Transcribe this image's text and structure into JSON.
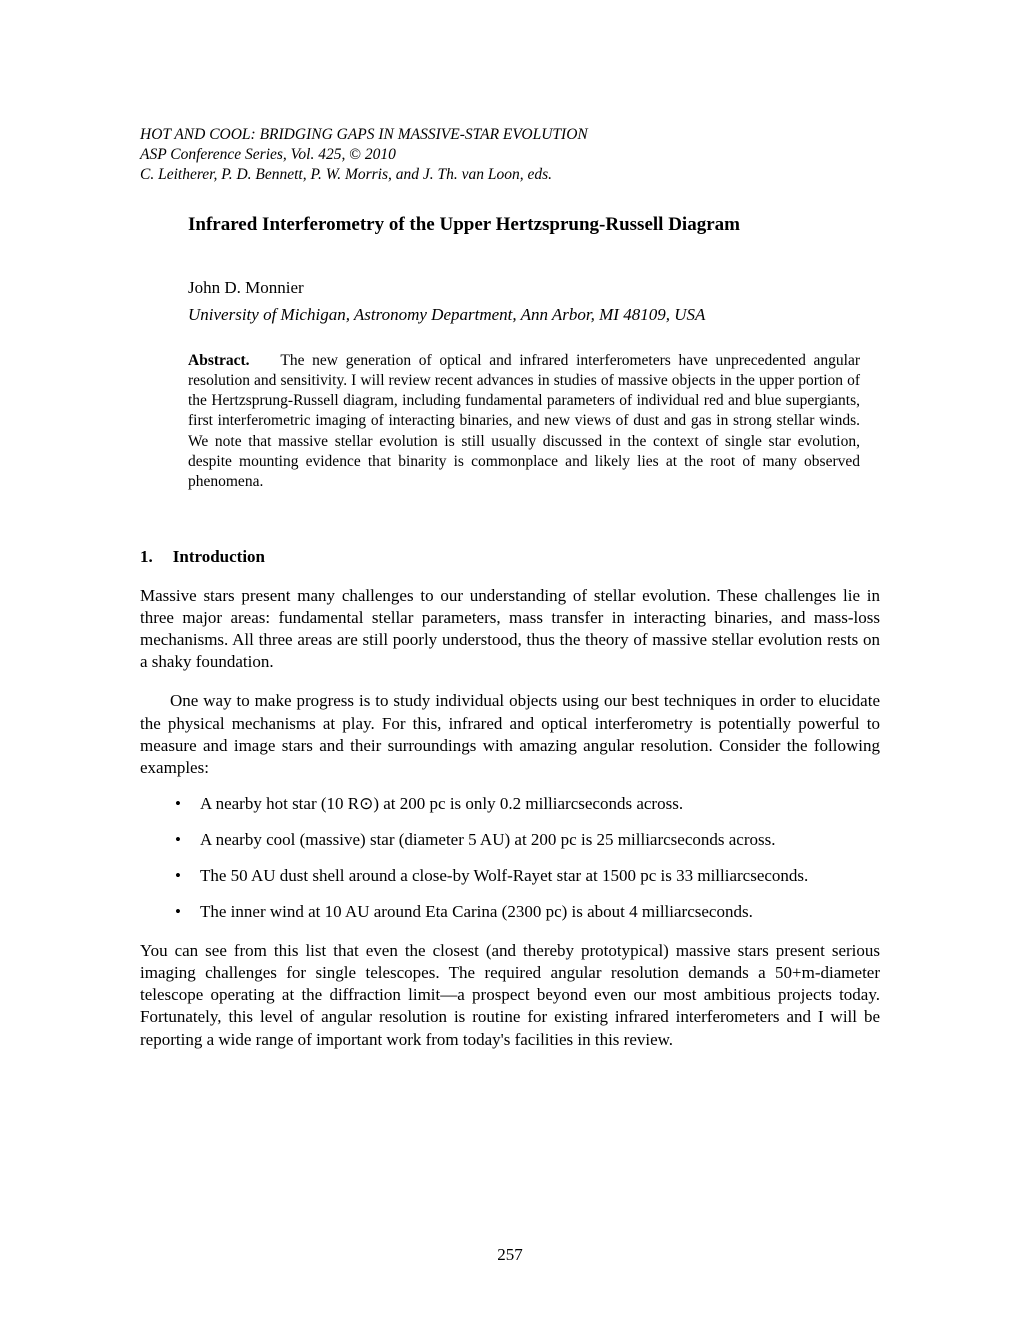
{
  "header": {
    "line1": "HOT AND COOL: BRIDGING GAPS IN MASSIVE-STAR EVOLUTION",
    "line2_prefix": "ASP Conference Series, Vol. 425, ",
    "line2_copyright": "© ",
    "line2_suffix": "2010",
    "line3": "C. Leitherer, P. D. Bennett, P. W. Morris, and J. Th. van Loon, eds."
  },
  "title": "Infrared Interferometry of the Upper Hertzsprung-Russell Diagram",
  "author": "John D. Monnier",
  "affiliation": "University of Michigan, Astronomy Department, Ann Arbor, MI 48109, USA",
  "abstract": {
    "label": "Abstract.",
    "text": "The new generation of optical and infrared interferometers have unprecedented angular resolution and sensitivity. I will review recent advances in studies of massive objects in the upper portion of the Hertzsprung-Russell diagram, including fundamental parameters of individual red and blue supergiants, first interferometric imaging of interacting binaries, and new views of dust and gas in strong stellar winds. We note that massive stellar evolution is still usually discussed in the context of single star evolution, despite mounting evidence that binarity is commonplace and likely lies at the root of many observed phenomena."
  },
  "section": {
    "number": "1.",
    "title": "Introduction"
  },
  "para1": "Massive stars present many challenges to our understanding of stellar evolution. These challenges lie in three major areas: fundamental stellar parameters, mass transfer in interacting binaries, and mass-loss mechanisms. All three areas are still poorly understood, thus the theory of massive stellar evolution rests on a shaky foundation.",
  "para2": "One way to make progress is to study individual objects using our best techniques in order to elucidate the physical mechanisms at play. For this, infrared and optical interferometry is potentially powerful to measure and image stars and their surroundings with amazing angular resolution. Consider the following examples:",
  "bullets": [
    "A nearby hot star (10 R⊙) at 200 pc is only 0.2 milliarcseconds across.",
    "A nearby cool (massive) star (diameter 5 AU) at 200 pc is 25 milliarcseconds across.",
    "The 50 AU dust shell around a close-by Wolf-Rayet star at 1500 pc is 33 milliarcseconds.",
    "The inner wind at 10 AU around Eta Carina (2300 pc) is about 4 milliarcseconds."
  ],
  "para3": "You can see from this list that even the closest (and thereby prototypical) massive stars present serious imaging challenges for single telescopes. The required angular resolution demands a 50+m-diameter telescope operating at the diffraction limit—a prospect beyond even our most ambitious projects today. Fortunately, this level of angular resolution is routine for existing infrared interferometers and I will be reporting a wide range of important work from today's facilities in this review.",
  "page_number": "257"
}
